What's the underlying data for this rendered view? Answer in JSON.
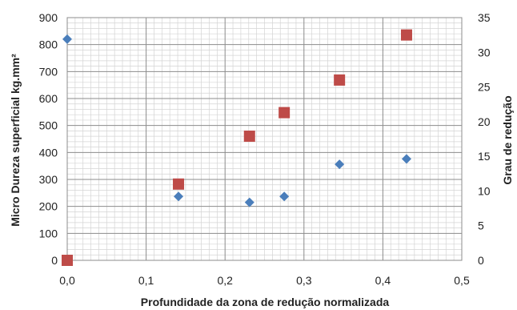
{
  "chart_data": {
    "type": "scatter",
    "xlabel": "Profundidade da zona de redução normalizada",
    "ylabel": "Micro Dureza superficial kg.mm²",
    "y2label": "Grau de redução",
    "xlim": [
      0,
      0.5
    ],
    "ylim": [
      0,
      900
    ],
    "y2lim": [
      0,
      35
    ],
    "x_ticks": [
      "0,0",
      "0,1",
      "0,2",
      "0,3",
      "0,4",
      "0,5"
    ],
    "y_ticks": [
      "0",
      "100",
      "200",
      "300",
      "400",
      "500",
      "600",
      "700",
      "800",
      "900"
    ],
    "y2_ticks": [
      "0",
      "5",
      "10",
      "15",
      "20",
      "25",
      "30",
      "35"
    ],
    "grid": true,
    "series": [
      {
        "axis": "left",
        "marker": "diamond",
        "color": "#4a7ebb",
        "x": [
          0.0,
          0.141,
          0.231,
          0.275,
          0.345,
          0.43
        ],
        "y": [
          820,
          237,
          215,
          237,
          356,
          376
        ]
      },
      {
        "axis": "right",
        "marker": "square",
        "color": "#be4b48",
        "x": [
          0.0,
          0.141,
          0.231,
          0.275,
          0.345,
          0.43
        ],
        "y": [
          0,
          11.0,
          17.9,
          21.3,
          26.0,
          32.5
        ]
      }
    ]
  }
}
